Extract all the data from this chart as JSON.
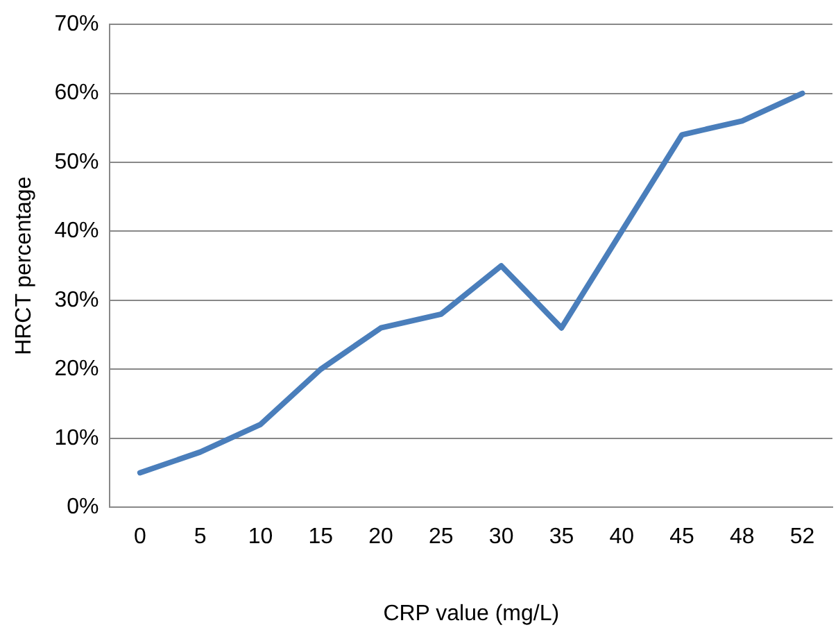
{
  "chart_data": {
    "type": "line",
    "xlabel": "CRP value (mg/L)",
    "ylabel": "HRCT percentage",
    "categories": [
      "0",
      "5",
      "10",
      "15",
      "20",
      "25",
      "30",
      "35",
      "40",
      "45",
      "48",
      "52"
    ],
    "series": [
      {
        "color": "#4a7ebb",
        "values": [
          5,
          8,
          12,
          20,
          26,
          28,
          35,
          26,
          40,
          54,
          56,
          60
        ]
      }
    ],
    "ylim": [
      0,
      70
    ],
    "yticks": [
      {
        "value": 0,
        "label": "0%"
      },
      {
        "value": 10,
        "label": "10%"
      },
      {
        "value": 20,
        "label": "20%"
      },
      {
        "value": 30,
        "label": "30%"
      },
      {
        "value": 40,
        "label": "40%"
      },
      {
        "value": 50,
        "label": "50%"
      },
      {
        "value": 60,
        "label": "60%"
      },
      {
        "value": 70,
        "label": "70%"
      }
    ],
    "grid": "y",
    "legend": false,
    "marker": "none",
    "line_style": "solid"
  }
}
